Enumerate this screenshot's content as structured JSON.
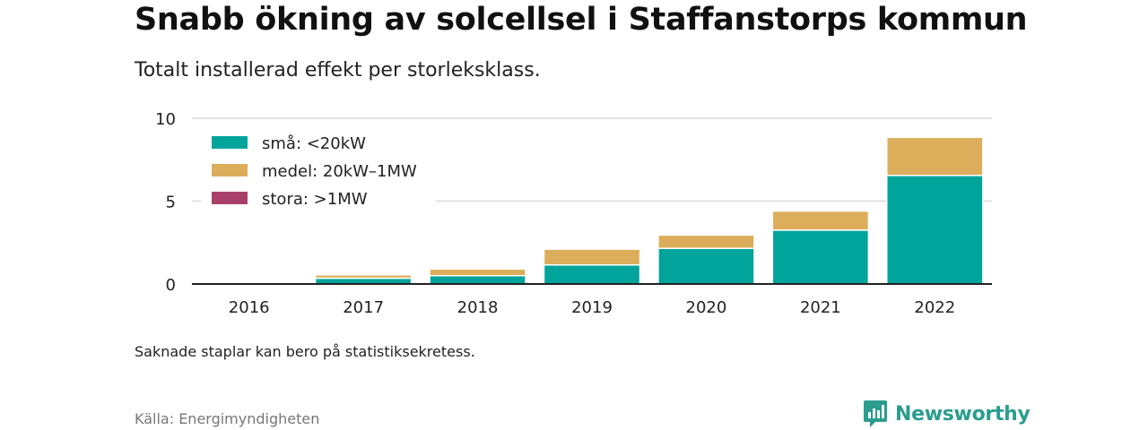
{
  "title": "Snabb ökning av solcellsel i Staffanstorps kommun",
  "subtitle": "Totalt installerad effekt per storleksklass.",
  "note": "Saknade staplar kan bero på statistiksekretess.",
  "source": "Källa: Energimyndigheten",
  "brand": {
    "name": "Newsworthy",
    "icon": "newsworthy-logo-icon",
    "color": "#2a9d8f"
  },
  "chart_data": {
    "type": "bar",
    "stacked": true,
    "categories": [
      "2016",
      "2017",
      "2018",
      "2019",
      "2020",
      "2021",
      "2022"
    ],
    "series": [
      {
        "name": "små: <20kW",
        "color": "#00a49a",
        "values": [
          0,
          0.35,
          0.5,
          1.15,
          2.15,
          3.25,
          6.55
        ]
      },
      {
        "name": "medel: 20kW–1MW",
        "color": "#dcad5a",
        "values": [
          0,
          0.2,
          0.4,
          0.95,
          0.8,
          1.15,
          2.3
        ]
      },
      {
        "name": "stora: >1MW",
        "color": "#a8406a",
        "values": [
          0,
          0,
          0,
          0,
          0,
          0,
          0
        ]
      }
    ],
    "ylim": [
      0,
      10
    ],
    "yticks": [
      0,
      5,
      10
    ],
    "xlabel": "",
    "ylabel": "",
    "grid": true,
    "legend": "top-left"
  }
}
